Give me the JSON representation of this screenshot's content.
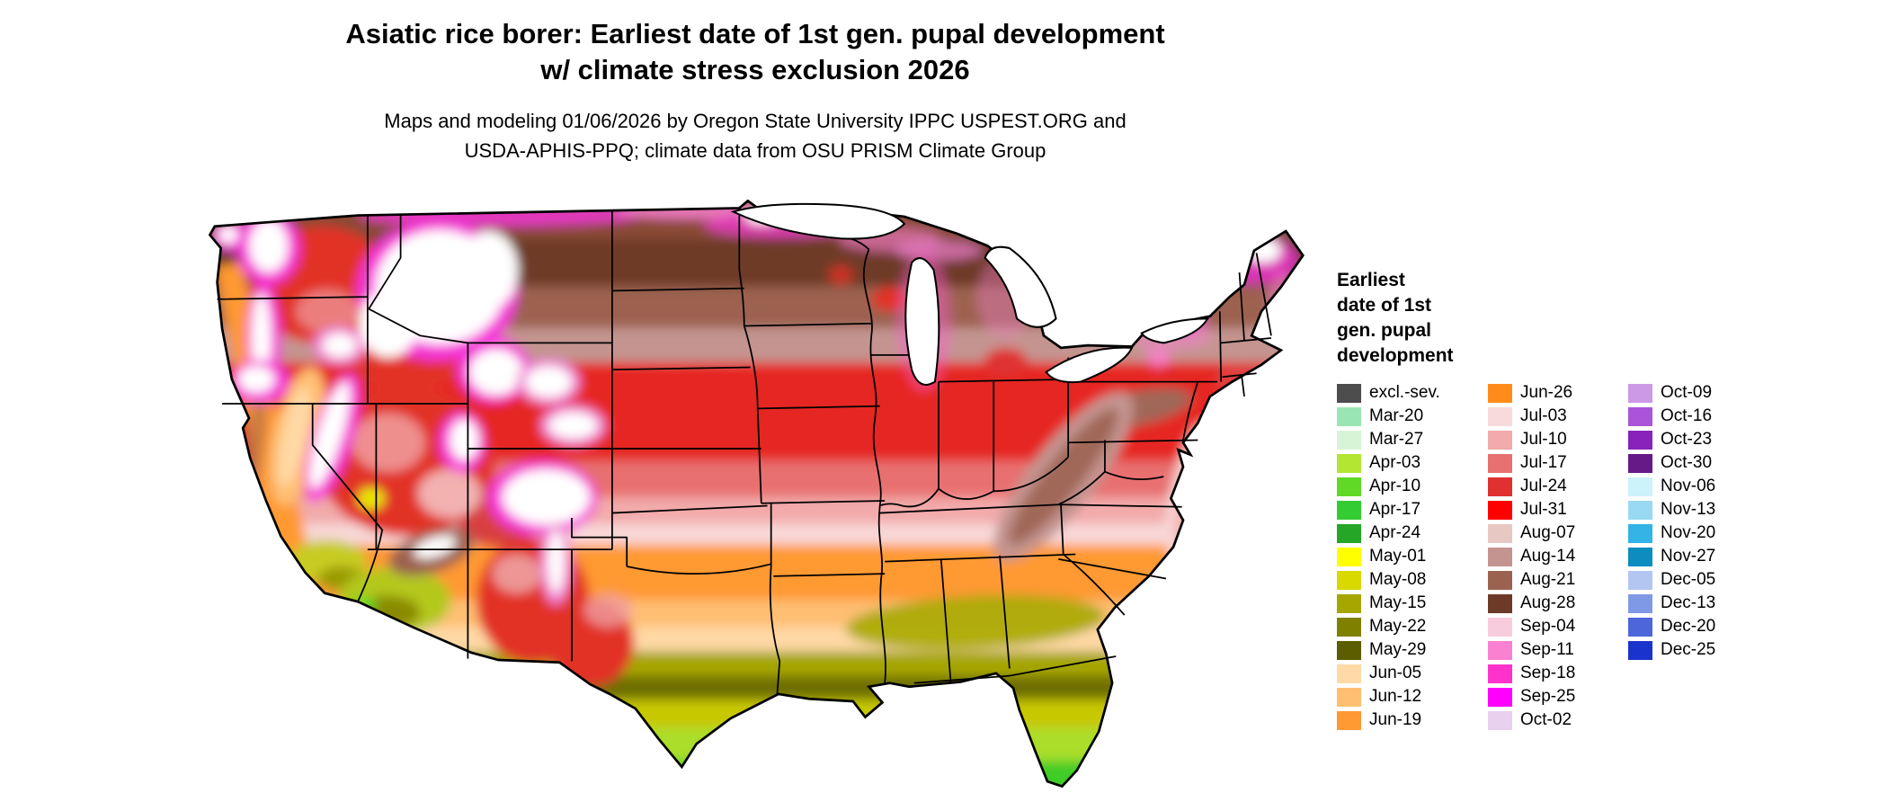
{
  "title": {
    "line1": "Asiatic rice borer: Earliest date of 1st gen. pupal development",
    "line2": "w/ climate stress exclusion 2026"
  },
  "subtitle": {
    "line1": "Maps and modeling 01/06/2026 by Oregon State University IPPC USPEST.ORG and",
    "line2": "USDA-APHIS-PPQ; climate data from OSU PRISM Climate Group"
  },
  "map": {
    "description": "Continental United States raster map of earliest date of first generation pupal development, colored by date class"
  },
  "legend": {
    "title_lines": [
      "Earliest",
      "date of 1st",
      "gen. pupal",
      "development"
    ],
    "columns": [
      {
        "items": [
          {
            "label": "excl.-sev.",
            "color": "#4d4d4d"
          },
          {
            "label": "Mar-20",
            "color": "#99e6b3"
          },
          {
            "label": "Mar-27",
            "color": "#d6f5d6"
          },
          {
            "label": "Apr-03",
            "color": "#b3e632"
          },
          {
            "label": "Apr-10",
            "color": "#5fd926"
          },
          {
            "label": "Apr-17",
            "color": "#33cc33"
          },
          {
            "label": "Apr-24",
            "color": "#26a626"
          },
          {
            "label": "May-01",
            "color": "#ffff00"
          },
          {
            "label": "May-08",
            "color": "#d9d900"
          },
          {
            "label": "May-15",
            "color": "#a6a600"
          },
          {
            "label": "May-22",
            "color": "#808000"
          },
          {
            "label": "May-29",
            "color": "#5c5c00"
          },
          {
            "label": "Jun-05",
            "color": "#ffd9a6"
          },
          {
            "label": "Jun-12",
            "color": "#ffbf73"
          },
          {
            "label": "Jun-19",
            "color": "#ff9933"
          }
        ]
      },
      {
        "items": [
          {
            "label": "Jun-26",
            "color": "#ff8c1a"
          },
          {
            "label": "Jul-03",
            "color": "#f9dada"
          },
          {
            "label": "Jul-10",
            "color": "#f2aaaa"
          },
          {
            "label": "Jul-17",
            "color": "#e87070"
          },
          {
            "label": "Jul-24",
            "color": "#e03030"
          },
          {
            "label": "Jul-31",
            "color": "#ff0000"
          },
          {
            "label": "Aug-07",
            "color": "#e8c8c2"
          },
          {
            "label": "Aug-14",
            "color": "#c49490"
          },
          {
            "label": "Aug-21",
            "color": "#9c6250"
          },
          {
            "label": "Aug-28",
            "color": "#6e3a28"
          },
          {
            "label": "Sep-04",
            "color": "#f9ccdd"
          },
          {
            "label": "Sep-11",
            "color": "#fa80d2"
          },
          {
            "label": "Sep-18",
            "color": "#ff33cc"
          },
          {
            "label": "Sep-25",
            "color": "#ff00ff"
          },
          {
            "label": "Oct-02",
            "color": "#e8d0f0"
          }
        ]
      },
      {
        "items": [
          {
            "label": "Oct-09",
            "color": "#cc99e6"
          },
          {
            "label": "Oct-16",
            "color": "#aa55d9"
          },
          {
            "label": "Oct-23",
            "color": "#8822bb"
          },
          {
            "label": "Oct-30",
            "color": "#661a88"
          },
          {
            "label": "Nov-06",
            "color": "#ccf2fa"
          },
          {
            "label": "Nov-13",
            "color": "#99d9f2"
          },
          {
            "label": "Nov-20",
            "color": "#33b3e6"
          },
          {
            "label": "Nov-27",
            "color": "#0d8cbf"
          },
          {
            "label": "Dec-05",
            "color": "#b3c6f2"
          },
          {
            "label": "Dec-13",
            "color": "#8099e6"
          },
          {
            "label": "Dec-20",
            "color": "#4d66d9"
          },
          {
            "label": "Dec-25",
            "color": "#1a33cc"
          }
        ]
      }
    ]
  }
}
